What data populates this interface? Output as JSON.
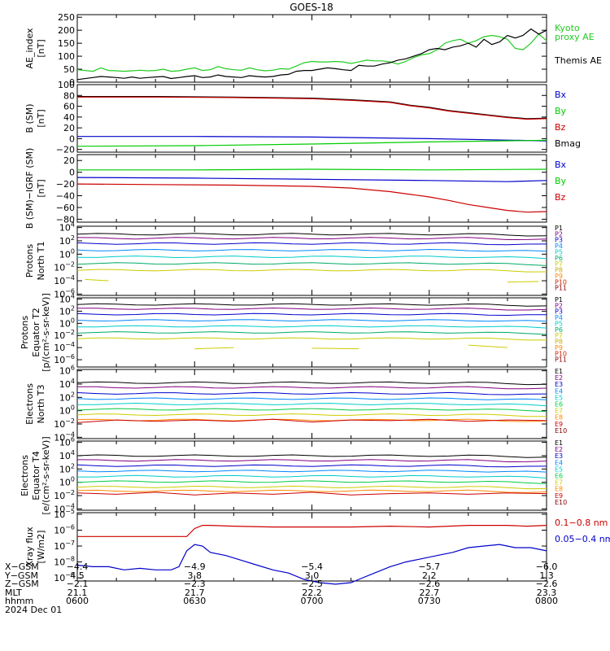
{
  "title": "GOES-18",
  "colors": {
    "black": "#000000",
    "blue": "#0000cc",
    "green": "#00cc00",
    "red": "#cc0000",
    "ae_kyoto": "#22cc22",
    "proxy_label": "#00cc00"
  },
  "chart_data": [
    {
      "type": "line",
      "id": "ae",
      "ylabel": "AE_index\n[nT]",
      "yticks": [
        "250",
        "200",
        "150",
        "100",
        "50",
        "0"
      ],
      "ylim": [
        0,
        260
      ],
      "legend": [
        {
          "name": "Kyoto\nproxy AE",
          "color": "#22cc22"
        },
        {
          "name": "Themis AE",
          "color": "#000000"
        }
      ],
      "series": [
        {
          "name": "Kyoto proxy AE",
          "color": "#22cc22",
          "x": [
            0,
            4,
            6,
            8,
            10,
            12,
            14,
            16,
            18,
            20,
            22,
            24,
            26,
            28,
            30,
            32,
            34,
            36,
            38,
            40,
            42,
            44,
            46,
            48,
            50,
            52,
            54,
            56,
            58,
            60,
            62,
            64,
            66,
            68,
            70,
            72,
            74,
            76,
            78,
            80,
            82,
            84,
            86,
            88,
            90,
            92,
            94,
            96,
            98,
            100,
            102,
            104,
            106,
            108,
            110,
            112,
            114,
            116,
            118,
            120
          ],
          "y": [
            48,
            42,
            55,
            45,
            44,
            42,
            44,
            46,
            44,
            45,
            50,
            42,
            44,
            50,
            55,
            45,
            48,
            60,
            52,
            48,
            46,
            55,
            48,
            44,
            46,
            52,
            50,
            62,
            75,
            80,
            78,
            78,
            80,
            78,
            72,
            78,
            85,
            82,
            82,
            78,
            70,
            80,
            95,
            105,
            110,
            125,
            150,
            160,
            165,
            150,
            160,
            175,
            180,
            175,
            165,
            130,
            125,
            150,
            185,
            160
          ]
        },
        {
          "name": "Themis AE",
          "color": "#000000",
          "x": [
            0,
            4,
            6,
            8,
            10,
            12,
            14,
            16,
            18,
            20,
            22,
            24,
            26,
            28,
            30,
            32,
            34,
            36,
            38,
            40,
            42,
            44,
            46,
            48,
            50,
            52,
            54,
            56,
            58,
            60,
            62,
            64,
            66,
            68,
            70,
            72,
            74,
            76,
            78,
            80,
            82,
            84,
            86,
            88,
            90,
            92,
            94,
            96,
            98,
            100,
            102,
            104,
            106,
            108,
            110,
            112,
            114,
            116,
            118,
            120
          ],
          "y": [
            10,
            18,
            22,
            20,
            18,
            15,
            20,
            15,
            18,
            20,
            22,
            14,
            18,
            22,
            25,
            18,
            20,
            28,
            22,
            20,
            18,
            25,
            22,
            20,
            22,
            28,
            30,
            42,
            45,
            45,
            50,
            55,
            52,
            48,
            45,
            65,
            62,
            62,
            70,
            75,
            85,
            90,
            100,
            110,
            125,
            130,
            125,
            135,
            140,
            150,
            135,
            165,
            145,
            155,
            180,
            170,
            180,
            205,
            185,
            200
          ]
        }
      ]
    },
    {
      "type": "line",
      "id": "bsm",
      "ylabel": "B (SM)\n[nT]",
      "yticks": [
        "100",
        "80",
        "60",
        "40",
        "20",
        "0",
        "−20"
      ],
      "ylim": [
        -25,
        100
      ],
      "legend": [
        {
          "name": "Bx",
          "color": "#0000cc"
        },
        {
          "name": "By",
          "color": "#00cc00"
        },
        {
          "name": "Bz",
          "color": "#cc0000"
        },
        {
          "name": "Bmag",
          "color": "#000000"
        }
      ],
      "series": [
        {
          "name": "Bmag",
          "color": "#000000",
          "x": [
            0,
            20,
            40,
            60,
            70,
            80,
            85,
            90,
            95,
            100,
            105,
            110,
            115,
            120
          ],
          "y": [
            78,
            78,
            77,
            75,
            72,
            68,
            62,
            58,
            52,
            48,
            44,
            40,
            37,
            38
          ]
        },
        {
          "name": "Bz",
          "color": "#cc0000",
          "x": [
            0,
            20,
            40,
            60,
            70,
            80,
            85,
            90,
            95,
            100,
            105,
            110,
            115,
            120
          ],
          "y": [
            77,
            77,
            76,
            74,
            71,
            67,
            61,
            57,
            51,
            47,
            43,
            39,
            36,
            37
          ]
        },
        {
          "name": "Bx",
          "color": "#0000cc",
          "x": [
            0,
            30,
            60,
            90,
            120
          ],
          "y": [
            4,
            4,
            3,
            0,
            -4
          ]
        },
        {
          "name": "By",
          "color": "#00cc00",
          "x": [
            0,
            30,
            60,
            90,
            120
          ],
          "y": [
            -14,
            -13,
            -10,
            -6,
            -3
          ]
        }
      ]
    },
    {
      "type": "line",
      "id": "bsm_igrf",
      "ylabel": "B (SM)−IGRF (SM)\n[nT]",
      "yticks": [
        "20",
        "0",
        "−20",
        "−40",
        "−60",
        "−80"
      ],
      "ylim": [
        -85,
        30
      ],
      "legend": [
        {
          "name": "Bx",
          "color": "#0000cc"
        },
        {
          "name": "By",
          "color": "#00cc00"
        },
        {
          "name": "Bz",
          "color": "#cc0000"
        }
      ],
      "series": [
        {
          "name": "By",
          "color": "#00cc00",
          "x": [
            0,
            30,
            60,
            90,
            120
          ],
          "y": [
            4,
            4,
            5,
            4,
            5
          ]
        },
        {
          "name": "Bx",
          "color": "#0000cc",
          "x": [
            0,
            30,
            60,
            90,
            110,
            120
          ],
          "y": [
            -9,
            -10,
            -12,
            -14,
            -16,
            -14
          ]
        },
        {
          "name": "Bz",
          "color": "#cc0000",
          "x": [
            0,
            20,
            40,
            60,
            70,
            80,
            90,
            95,
            100,
            105,
            110,
            115,
            120
          ],
          "y": [
            -20,
            -21,
            -22,
            -24,
            -27,
            -33,
            -42,
            -48,
            -55,
            -60,
            -65,
            -68,
            -67
          ]
        }
      ]
    },
    {
      "type": "line",
      "id": "p_t1",
      "ylabel": "Protons\nNorth T1",
      "yticks": [
        "10^4",
        "10^2",
        "10^0",
        "10^-2",
        "10^-4",
        "10^-6"
      ],
      "ylim": [
        -6.2,
        4.2
      ],
      "legend": [
        {
          "name": "P1",
          "color": "#000000"
        },
        {
          "name": "P2",
          "color": "#800080"
        },
        {
          "name": "P3",
          "color": "#0000cc"
        },
        {
          "name": "P4",
          "color": "#0088ff"
        },
        {
          "name": "P5",
          "color": "#00cccc"
        },
        {
          "name": "P6",
          "color": "#00aa66"
        },
        {
          "name": "P7",
          "color": "#cccc00"
        },
        {
          "name": "P8",
          "color": "#ccaa00"
        },
        {
          "name": "P9",
          "color": "#ff8800"
        },
        {
          "name": "P10",
          "color": "#cc2200"
        },
        {
          "name": "P11",
          "color": "#880000"
        }
      ],
      "levels": [
        3.0,
        2.4,
        1.6,
        0.6,
        -0.4,
        -1.4,
        -2.4
      ],
      "sparse": [
        {
          "x": [
            2,
            8
          ],
          "y": [
            -3.8,
            -4.0
          ]
        },
        {
          "x": [
            110,
            118
          ],
          "y": [
            -4.2,
            -4.1
          ]
        }
      ]
    },
    {
      "type": "line",
      "id": "p_t2",
      "ylabel": "Protons\nEquator T2\n[p/(cm²-s-sr-keV)]",
      "yticks": [
        "10^4",
        "10^2",
        "10^0",
        "10^-2",
        "10^-4",
        "10^-6"
      ],
      "ylim": [
        -7.2,
        4.2
      ],
      "legend": [
        {
          "name": "P1",
          "color": "#000000"
        },
        {
          "name": "P2",
          "color": "#800080"
        },
        {
          "name": "P3",
          "color": "#0000cc"
        },
        {
          "name": "P4",
          "color": "#0088ff"
        },
        {
          "name": "P5",
          "color": "#00cccc"
        },
        {
          "name": "P6",
          "color": "#00aa66"
        },
        {
          "name": "P7",
          "color": "#cccc00"
        },
        {
          "name": "P8",
          "color": "#ccaa00"
        },
        {
          "name": "P9",
          "color": "#ff8800"
        },
        {
          "name": "P10",
          "color": "#cc2200"
        },
        {
          "name": "P11",
          "color": "#880000"
        }
      ],
      "levels": [
        3.1,
        2.4,
        1.5,
        0.5,
        -0.5,
        -1.5,
        -2.5
      ],
      "sparse": [
        {
          "x": [
            30,
            40
          ],
          "y": [
            -4.2,
            -4.0
          ]
        },
        {
          "x": [
            60,
            72
          ],
          "y": [
            -4.1,
            -4.2
          ]
        },
        {
          "x": [
            100,
            110
          ],
          "y": [
            -3.6,
            -4.0
          ]
        }
      ]
    },
    {
      "type": "line",
      "id": "e_t3",
      "ylabel": "Electrons\nNorth T3",
      "yticks": [
        "10^6",
        "10^4",
        "10^2",
        "10^0",
        "10^-2",
        "10^-4"
      ],
      "ylim": [
        -4.2,
        6.2
      ],
      "legend": [
        {
          "name": "E1",
          "color": "#000000"
        },
        {
          "name": "E2",
          "color": "#800080"
        },
        {
          "name": "E3",
          "color": "#0000cc"
        },
        {
          "name": "E4",
          "color": "#0088ff"
        },
        {
          "name": "E5",
          "color": "#00cccc"
        },
        {
          "name": "E6",
          "color": "#00cc44"
        },
        {
          "name": "E7",
          "color": "#cccc00"
        },
        {
          "name": "E8",
          "color": "#ff8800"
        },
        {
          "name": "E9",
          "color": "#cc0000"
        },
        {
          "name": "E10",
          "color": "#880000"
        }
      ],
      "levels": [
        4.2,
        3.5,
        2.6,
        1.8,
        1.0,
        0.2,
        -0.6,
        -1.4
      ],
      "red": {
        "x": [
          0,
          10,
          20,
          30,
          40,
          50,
          60,
          70,
          80,
          90,
          100,
          110,
          120
        ],
        "y": [
          -1.8,
          -1.4,
          -1.6,
          -1.4,
          -1.6,
          -1.3,
          -1.7,
          -1.4,
          -1.5,
          -1.3,
          -1.6,
          -1.4,
          -1.5
        ]
      }
    },
    {
      "type": "line",
      "id": "e_t4",
      "ylabel": "Electrons\nEquator T4\n[e/(cm²-s-sr-keV)]",
      "yticks": [
        "10^6",
        "10^4",
        "10^2",
        "10^0",
        "10^-2",
        "10^-4"
      ],
      "ylim": [
        -4.2,
        6.2
      ],
      "legend": [
        {
          "name": "E1",
          "color": "#000000"
        },
        {
          "name": "E2",
          "color": "#800080"
        },
        {
          "name": "E3",
          "color": "#0000cc"
        },
        {
          "name": "E4",
          "color": "#0088ff"
        },
        {
          "name": "E5",
          "color": "#00cccc"
        },
        {
          "name": "E6",
          "color": "#00cc44"
        },
        {
          "name": "E7",
          "color": "#cccc00"
        },
        {
          "name": "E8",
          "color": "#ff8800"
        },
        {
          "name": "E9",
          "color": "#cc0000"
        },
        {
          "name": "E10",
          "color": "#880000"
        }
      ],
      "levels": [
        4.0,
        3.3,
        2.5,
        1.7,
        0.9,
        0.1,
        -0.7,
        -1.3
      ],
      "red": {
        "x": [
          0,
          10,
          20,
          30,
          40,
          50,
          60,
          70,
          80,
          90,
          100,
          110,
          120
        ],
        "y": [
          -1.6,
          -1.8,
          -1.5,
          -1.9,
          -1.6,
          -1.8,
          -1.5,
          -1.9,
          -1.7,
          -1.6,
          -1.8,
          -1.6,
          -1.7
        ]
      }
    },
    {
      "type": "line",
      "id": "xray",
      "ylabel": "Xray flux\n[W/m2]",
      "yticks": [
        "10^-5",
        "10^-6",
        "10^-7",
        "10^-8",
        "10^-9"
      ],
      "ylim": [
        -9.2,
        -4.9
      ],
      "legend": [
        {
          "name": "0.1−0.8 nm",
          "color": "#cc0000"
        },
        {
          "name": "0.05−0.4 nm",
          "color": "#0000cc"
        }
      ],
      "series": [
        {
          "name": "0.1−0.8 nm",
          "color": "#cc0000",
          "x": [
            0,
            10,
            20,
            28,
            30,
            32,
            34,
            40,
            50,
            60,
            70,
            80,
            90,
            100,
            110,
            115,
            120
          ],
          "y": [
            -6.4,
            -6.4,
            -6.4,
            -6.4,
            -5.9,
            -5.7,
            -5.7,
            -5.75,
            -5.8,
            -5.8,
            -5.8,
            -5.75,
            -5.8,
            -5.7,
            -5.7,
            -5.75,
            -5.7
          ]
        },
        {
          "name": "0.05−0.4 nm",
          "color": "#0000cc",
          "x": [
            0,
            4,
            8,
            12,
            16,
            20,
            24,
            26,
            28,
            30,
            32,
            34,
            38,
            42,
            46,
            50,
            54,
            58,
            62,
            66,
            70,
            72,
            76,
            80,
            84,
            88,
            92,
            96,
            100,
            104,
            108,
            112,
            116,
            120
          ],
          "y": [
            -8.2,
            -8.3,
            -8.3,
            -8.5,
            -8.4,
            -8.5,
            -8.5,
            -8.3,
            -7.3,
            -6.9,
            -7.0,
            -7.4,
            -7.6,
            -7.9,
            -8.2,
            -8.5,
            -8.7,
            -9.1,
            -9.3,
            -9.4,
            -9.3,
            -9.1,
            -8.7,
            -8.3,
            -8.0,
            -7.8,
            -7.6,
            -7.4,
            -7.1,
            -7.0,
            -6.9,
            -7.1,
            -7.1,
            -7.3
          ]
        }
      ]
    }
  ],
  "xaxis": {
    "ticks": [
      {
        "x": 0,
        "xgsm": "−4.4",
        "ygsm": "4.5",
        "zgsm": "−2.1",
        "mlt": "21.1",
        "hhmm": "0600"
      },
      {
        "x": 30,
        "xgsm": "−4.9",
        "ygsm": "3.8",
        "zgsm": "−2.3",
        "mlt": "21.7",
        "hhmm": "0630"
      },
      {
        "x": 60,
        "xgsm": "−5.4",
        "ygsm": "3.0",
        "zgsm": "−2.5",
        "mlt": "22.2",
        "hhmm": "0700"
      },
      {
        "x": 90,
        "xgsm": "−5.7",
        "ygsm": "2.2",
        "zgsm": "−2.6",
        "mlt": "22.7",
        "hhmm": "0730"
      },
      {
        "x": 120,
        "xgsm": "−6.0",
        "ygsm": "1.3",
        "zgsm": "−2.6",
        "mlt": "23.3",
        "hhmm": "0800"
      }
    ],
    "row_labels": [
      "X−GSM",
      "Y−GSM",
      "Z−GSM",
      "MLT",
      "hhmm"
    ],
    "date": "2024 Dec 01"
  }
}
